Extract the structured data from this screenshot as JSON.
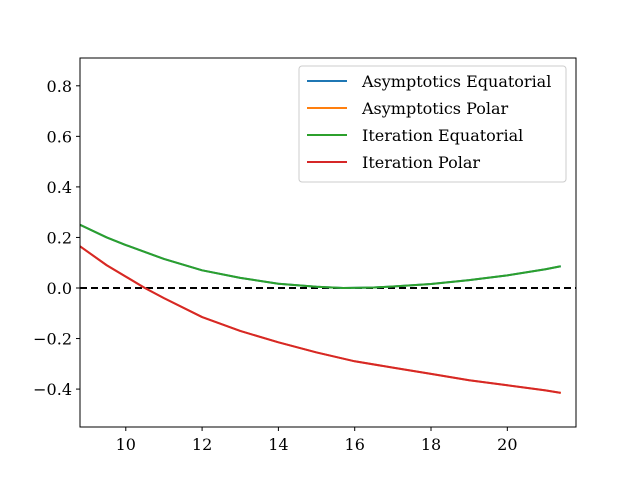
{
  "chart_data": {
    "type": "line",
    "title": "",
    "xlabel": "",
    "ylabel": "",
    "xlim": [
      8.8,
      21.8
    ],
    "ylim": [
      -0.55,
      0.91
    ],
    "xticks": [
      10,
      12,
      14,
      16,
      18,
      20
    ],
    "yticks": [
      -0.4,
      -0.2,
      0.0,
      0.2,
      0.4,
      0.6,
      0.8
    ],
    "xtick_labels": [
      "10",
      "12",
      "14",
      "16",
      "18",
      "20"
    ],
    "ytick_labels": [
      "−0.4",
      "−0.2",
      "0.0",
      "0.2",
      "0.4",
      "0.6",
      "0.8"
    ],
    "grid": false,
    "legend_position": "top-right",
    "reference_line": {
      "y": 0.0,
      "style": "dashed",
      "color": "#000000"
    },
    "series": [
      {
        "name": "Asymptotics Equatorial",
        "color": "#1f77b4",
        "x": [
          8.8,
          9.5,
          10,
          11,
          12,
          13,
          14,
          15,
          15.7,
          16.5,
          17,
          18,
          19,
          20,
          21,
          21.4
        ],
        "y": [
          0.25,
          0.2,
          0.17,
          0.115,
          0.07,
          0.04,
          0.017,
          0.005,
          0.0,
          0.002,
          0.006,
          0.016,
          0.031,
          0.05,
          0.074,
          0.086
        ]
      },
      {
        "name": "Asymptotics Polar",
        "color": "#ff7f0e",
        "x": [
          8.8,
          9.5,
          10,
          10.5,
          11,
          12,
          13,
          14,
          15,
          16,
          17,
          18,
          19,
          20,
          21,
          21.4
        ],
        "y": [
          0.165,
          0.09,
          0.045,
          0.0,
          -0.04,
          -0.115,
          -0.17,
          -0.215,
          -0.255,
          -0.29,
          -0.315,
          -0.34,
          -0.365,
          -0.385,
          -0.405,
          -0.415
        ]
      },
      {
        "name": "Iteration Equatorial",
        "color": "#2ca02c",
        "x": [
          8.8,
          9.5,
          10,
          11,
          12,
          13,
          14,
          15,
          15.7,
          16.5,
          17,
          18,
          19,
          20,
          21,
          21.4
        ],
        "y": [
          0.25,
          0.2,
          0.17,
          0.115,
          0.07,
          0.04,
          0.017,
          0.005,
          0.0,
          0.002,
          0.006,
          0.016,
          0.031,
          0.05,
          0.074,
          0.086
        ]
      },
      {
        "name": "Iteration Polar",
        "color": "#d62728",
        "x": [
          8.8,
          9.5,
          10,
          10.5,
          11,
          12,
          13,
          14,
          15,
          16,
          17,
          18,
          19,
          20,
          21,
          21.4
        ],
        "y": [
          0.165,
          0.09,
          0.045,
          0.0,
          -0.04,
          -0.115,
          -0.17,
          -0.215,
          -0.255,
          -0.29,
          -0.315,
          -0.34,
          -0.365,
          -0.385,
          -0.405,
          -0.415
        ]
      }
    ]
  }
}
